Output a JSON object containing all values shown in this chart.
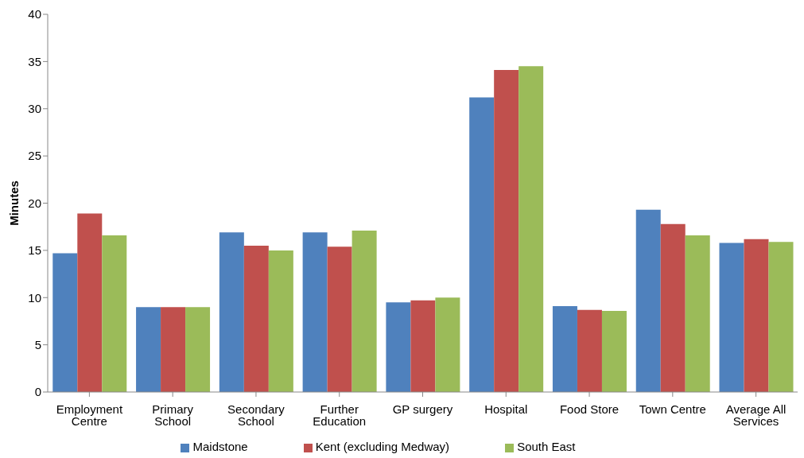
{
  "chart_data": {
    "type": "bar",
    "ylabel": "Minutes",
    "categories": [
      "Employment Centre",
      "Primary School",
      "Secondary School",
      "Further Education",
      "GP surgery",
      "Hospital",
      "Food Store",
      "Town Centre",
      "Average All Services"
    ],
    "series": [
      {
        "name": "Maidstone",
        "color": "#4f81bd",
        "values": [
          14.7,
          9.0,
          16.9,
          16.9,
          9.5,
          31.2,
          9.1,
          19.3,
          15.8
        ]
      },
      {
        "name": "Kent (excluding Medway)",
        "color": "#c0504d",
        "values": [
          18.9,
          9.0,
          15.5,
          15.4,
          9.7,
          34.1,
          8.7,
          17.8,
          16.2
        ]
      },
      {
        "name": "South East",
        "color": "#9bbb59",
        "values": [
          16.6,
          9.0,
          15.0,
          17.1,
          10.0,
          34.5,
          8.6,
          16.6,
          15.9
        ]
      }
    ],
    "ylim": [
      0,
      40
    ],
    "yticks": [
      0,
      5,
      10,
      15,
      20,
      25,
      30,
      35,
      40
    ],
    "grid": false,
    "legend": "bottom"
  }
}
